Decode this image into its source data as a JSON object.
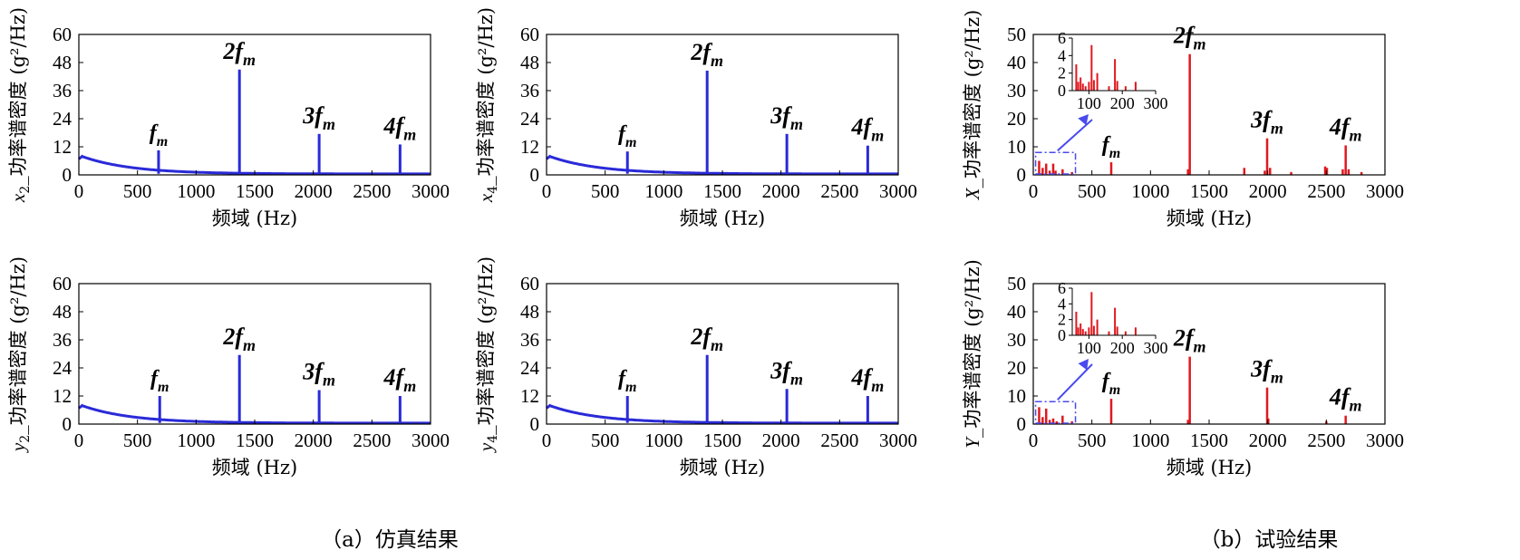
{
  "captions": {
    "a": "（a）仿真结果",
    "b": "（b）试验结果"
  },
  "colors": {
    "simulation": "#2a2ad8",
    "experiment": "#e0181e",
    "inset_box": "#4a4aee"
  },
  "chart_data": [
    {
      "id": "x2",
      "type": "line",
      "color": "simulation",
      "ylabel": "x_2_功率谱密度 (g²/Hz)",
      "ylabel_var": "x",
      "ylabel_sub": "2",
      "xlabel": "频域 (Hz)",
      "xlim": [
        0,
        3000
      ],
      "ylim": [
        0,
        60
      ],
      "xticks": [
        0,
        500,
        1000,
        1500,
        2000,
        2500,
        3000
      ],
      "yticks": [
        0,
        12,
        24,
        36,
        48,
        60
      ],
      "decay": {
        "y0": 8,
        "tau": 420
      },
      "peaks": [
        {
          "x": 680,
          "y": 10.5,
          "label": "f",
          "sub": "m",
          "coef": ""
        },
        {
          "x": 1370,
          "y": 45,
          "label": "f",
          "sub": "m",
          "coef": "2"
        },
        {
          "x": 2050,
          "y": 17.5,
          "label": "f",
          "sub": "m",
          "coef": "3"
        },
        {
          "x": 2740,
          "y": 13,
          "label": "f",
          "sub": "m",
          "coef": "4"
        }
      ]
    },
    {
      "id": "x4",
      "type": "line",
      "color": "simulation",
      "ylabel": "x_4_功率谱密度 (g²/Hz)",
      "ylabel_var": "x",
      "ylabel_sub": "4",
      "xlabel": "频域 (Hz)",
      "xlim": [
        0,
        3000
      ],
      "ylim": [
        0,
        60
      ],
      "xticks": [
        0,
        500,
        1000,
        1500,
        2000,
        2500,
        3000
      ],
      "yticks": [
        0,
        12,
        24,
        36,
        48,
        60
      ],
      "decay": {
        "y0": 8,
        "tau": 420
      },
      "peaks": [
        {
          "x": 690,
          "y": 10,
          "label": "f",
          "sub": "m",
          "coef": ""
        },
        {
          "x": 1370,
          "y": 44.5,
          "label": "f",
          "sub": "m",
          "coef": "2"
        },
        {
          "x": 2050,
          "y": 17.5,
          "label": "f",
          "sub": "m",
          "coef": "3"
        },
        {
          "x": 2740,
          "y": 12.5,
          "label": "f",
          "sub": "m",
          "coef": "4"
        }
      ]
    },
    {
      "id": "X",
      "type": "bar",
      "color": "experiment",
      "ylabel": "X_功率谱密度 (g²/Hz)",
      "ylabel_var": "X",
      "ylabel_sub": "",
      "xlabel": "频域 (Hz)",
      "xlim": [
        0,
        3000
      ],
      "ylim": [
        0,
        50
      ],
      "xticks": [
        0,
        500,
        1000,
        1500,
        2000,
        2500,
        3000
      ],
      "yticks": [
        0,
        10,
        20,
        30,
        40,
        50
      ],
      "bars": [
        {
          "x": 50,
          "y": 5
        },
        {
          "x": 80,
          "y": 2.5
        },
        {
          "x": 110,
          "y": 4
        },
        {
          "x": 140,
          "y": 1.5
        },
        {
          "x": 170,
          "y": 4
        },
        {
          "x": 190,
          "y": 1.5
        },
        {
          "x": 250,
          "y": 2
        },
        {
          "x": 330,
          "y": 1
        },
        {
          "x": 665,
          "y": 4.5
        },
        {
          "x": 1320,
          "y": 2
        },
        {
          "x": 1335,
          "y": 43
        },
        {
          "x": 1800,
          "y": 2.5
        },
        {
          "x": 1975,
          "y": 1.5
        },
        {
          "x": 1995,
          "y": 13
        },
        {
          "x": 2020,
          "y": 2.5
        },
        {
          "x": 2200,
          "y": 1
        },
        {
          "x": 2490,
          "y": 3
        },
        {
          "x": 2505,
          "y": 2.5
        },
        {
          "x": 2640,
          "y": 2
        },
        {
          "x": 2665,
          "y": 10.5
        },
        {
          "x": 2690,
          "y": 2
        },
        {
          "x": 2800,
          "y": 1
        }
      ],
      "peaks": [
        {
          "x": 665,
          "y": 4.5,
          "label": "f",
          "sub": "m",
          "coef": ""
        },
        {
          "x": 1335,
          "y": 43,
          "label": "f",
          "sub": "m",
          "coef": "2"
        },
        {
          "x": 1995,
          "y": 13,
          "label": "f",
          "sub": "m",
          "coef": "3"
        },
        {
          "x": 2665,
          "y": 10.5,
          "label": "f",
          "sub": "m",
          "coef": "4"
        }
      ],
      "inset": {
        "xlim": [
          50,
          300
        ],
        "ylim": [
          0,
          6
        ],
        "xticks": [
          100,
          200,
          300
        ],
        "yticks": [
          0,
          2,
          4,
          6
        ],
        "zoom_x": [
          20,
          360
        ],
        "zoom_y": [
          0,
          8
        ],
        "bars": [
          {
            "x": 62,
            "y": 3
          },
          {
            "x": 68,
            "y": 1
          },
          {
            "x": 75,
            "y": 1.5
          },
          {
            "x": 82,
            "y": 0.8
          },
          {
            "x": 90,
            "y": 0.5
          },
          {
            "x": 100,
            "y": 1
          },
          {
            "x": 108,
            "y": 5.2
          },
          {
            "x": 115,
            "y": 1.2
          },
          {
            "x": 125,
            "y": 2
          },
          {
            "x": 160,
            "y": 0.5
          },
          {
            "x": 178,
            "y": 3.6
          },
          {
            "x": 185,
            "y": 1.1
          },
          {
            "x": 210,
            "y": 0.5
          },
          {
            "x": 240,
            "y": 1
          }
        ]
      }
    },
    {
      "id": "y2",
      "type": "line",
      "color": "simulation",
      "ylabel": "y_2_功率谱密度 (g²/Hz)",
      "ylabel_var": "y",
      "ylabel_sub": "2",
      "xlabel": "频域 (Hz)",
      "xlim": [
        0,
        3000
      ],
      "ylim": [
        0,
        60
      ],
      "xticks": [
        0,
        500,
        1000,
        1500,
        2000,
        2500,
        3000
      ],
      "yticks": [
        0,
        12,
        24,
        36,
        48,
        60
      ],
      "decay": {
        "y0": 8,
        "tau": 420
      },
      "peaks": [
        {
          "x": 690,
          "y": 12,
          "label": "f",
          "sub": "m",
          "coef": ""
        },
        {
          "x": 1370,
          "y": 29.5,
          "label": "f",
          "sub": "m",
          "coef": "2"
        },
        {
          "x": 2050,
          "y": 14.5,
          "label": "f",
          "sub": "m",
          "coef": "3"
        },
        {
          "x": 2740,
          "y": 12,
          "label": "f",
          "sub": "m",
          "coef": "4"
        }
      ]
    },
    {
      "id": "y4",
      "type": "line",
      "color": "simulation",
      "ylabel": "y_4_功率谱密度 (g²/Hz)",
      "ylabel_var": "y",
      "ylabel_sub": "4",
      "xlabel": "频域 (Hz)",
      "xlim": [
        0,
        3000
      ],
      "ylim": [
        0,
        60
      ],
      "xticks": [
        0,
        500,
        1000,
        1500,
        2000,
        2500,
        3000
      ],
      "yticks": [
        0,
        12,
        24,
        36,
        48,
        60
      ],
      "decay": {
        "y0": 8,
        "tau": 420
      },
      "peaks": [
        {
          "x": 690,
          "y": 12,
          "label": "f",
          "sub": "m",
          "coef": ""
        },
        {
          "x": 1370,
          "y": 29.5,
          "label": "f",
          "sub": "m",
          "coef": "2"
        },
        {
          "x": 2050,
          "y": 15,
          "label": "f",
          "sub": "m",
          "coef": "3"
        },
        {
          "x": 2740,
          "y": 12,
          "label": "f",
          "sub": "m",
          "coef": "4"
        }
      ]
    },
    {
      "id": "Y",
      "type": "bar",
      "color": "experiment",
      "ylabel": "Y_功率谱密度 (g²/Hz)",
      "ylabel_var": "Y",
      "ylabel_sub": "",
      "xlabel": "频域 (Hz)",
      "xlim": [
        0,
        3000
      ],
      "ylim": [
        0,
        50
      ],
      "xticks": [
        0,
        500,
        1000,
        1500,
        2000,
        2500,
        3000
      ],
      "yticks": [
        0,
        10,
        20,
        30,
        40,
        50
      ],
      "bars": [
        {
          "x": 50,
          "y": 6
        },
        {
          "x": 80,
          "y": 2.5
        },
        {
          "x": 110,
          "y": 5.5
        },
        {
          "x": 140,
          "y": 1.5
        },
        {
          "x": 170,
          "y": 2
        },
        {
          "x": 200,
          "y": 1
        },
        {
          "x": 250,
          "y": 3
        },
        {
          "x": 330,
          "y": 1
        },
        {
          "x": 665,
          "y": 9
        },
        {
          "x": 1320,
          "y": 1.5
        },
        {
          "x": 1335,
          "y": 24
        },
        {
          "x": 1995,
          "y": 13
        },
        {
          "x": 2005,
          "y": 2
        },
        {
          "x": 2500,
          "y": 1
        },
        {
          "x": 2665,
          "y": 3
        }
      ],
      "peaks": [
        {
          "x": 665,
          "y": 9,
          "label": "f",
          "sub": "m",
          "coef": ""
        },
        {
          "x": 1335,
          "y": 24,
          "label": "f",
          "sub": "m",
          "coef": "2"
        },
        {
          "x": 1995,
          "y": 13,
          "label": "f",
          "sub": "m",
          "coef": "3"
        },
        {
          "x": 2665,
          "y": 3,
          "label": "f",
          "sub": "m",
          "coef": "4"
        }
      ],
      "inset": {
        "xlim": [
          50,
          300
        ],
        "ylim": [
          0,
          6
        ],
        "xticks": [
          100,
          200,
          300
        ],
        "yticks": [
          0,
          2,
          4,
          6
        ],
        "zoom_x": [
          20,
          360
        ],
        "zoom_y": [
          0,
          8
        ],
        "bars": [
          {
            "x": 62,
            "y": 3
          },
          {
            "x": 68,
            "y": 1
          },
          {
            "x": 75,
            "y": 1.5
          },
          {
            "x": 82,
            "y": 0.8
          },
          {
            "x": 90,
            "y": 0.5
          },
          {
            "x": 100,
            "y": 1
          },
          {
            "x": 108,
            "y": 5.5
          },
          {
            "x": 115,
            "y": 1.2
          },
          {
            "x": 125,
            "y": 2
          },
          {
            "x": 160,
            "y": 0.5
          },
          {
            "x": 178,
            "y": 3.5
          },
          {
            "x": 185,
            "y": 1.1
          },
          {
            "x": 210,
            "y": 0.5
          },
          {
            "x": 240,
            "y": 1
          }
        ]
      }
    }
  ]
}
